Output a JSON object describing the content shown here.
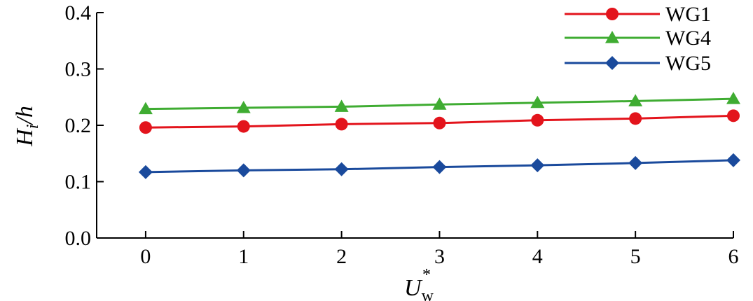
{
  "chart_data": {
    "type": "line",
    "x": [
      0,
      1,
      2,
      3,
      4,
      5,
      6
    ],
    "xticks": [
      "0",
      "1",
      "2",
      "3",
      "4",
      "5",
      "6"
    ],
    "yticks": [
      "0.0",
      "0.1",
      "0.2",
      "0.3",
      "0.4"
    ],
    "xlim": [
      -0.5,
      6
    ],
    "ylim": [
      0,
      0.4
    ],
    "xlabel": {
      "main": "U",
      "sub": "w",
      "sup": "*"
    },
    "ylabel": {
      "main": "H",
      "sub": "i",
      "rest": "/h"
    },
    "grid": false,
    "legend_position": "top-right",
    "series": [
      {
        "name": "WG1",
        "color": "#e3141c",
        "marker": "circle",
        "values": [
          0.196,
          0.198,
          0.202,
          0.204,
          0.209,
          0.212,
          0.217
        ]
      },
      {
        "name": "WG4",
        "color": "#3fac32",
        "marker": "triangle",
        "values": [
          0.229,
          0.231,
          0.233,
          0.237,
          0.24,
          0.243,
          0.247
        ]
      },
      {
        "name": "WG5",
        "color": "#1a4a9c",
        "marker": "diamond",
        "values": [
          0.117,
          0.12,
          0.122,
          0.126,
          0.129,
          0.133,
          0.138
        ]
      }
    ]
  }
}
